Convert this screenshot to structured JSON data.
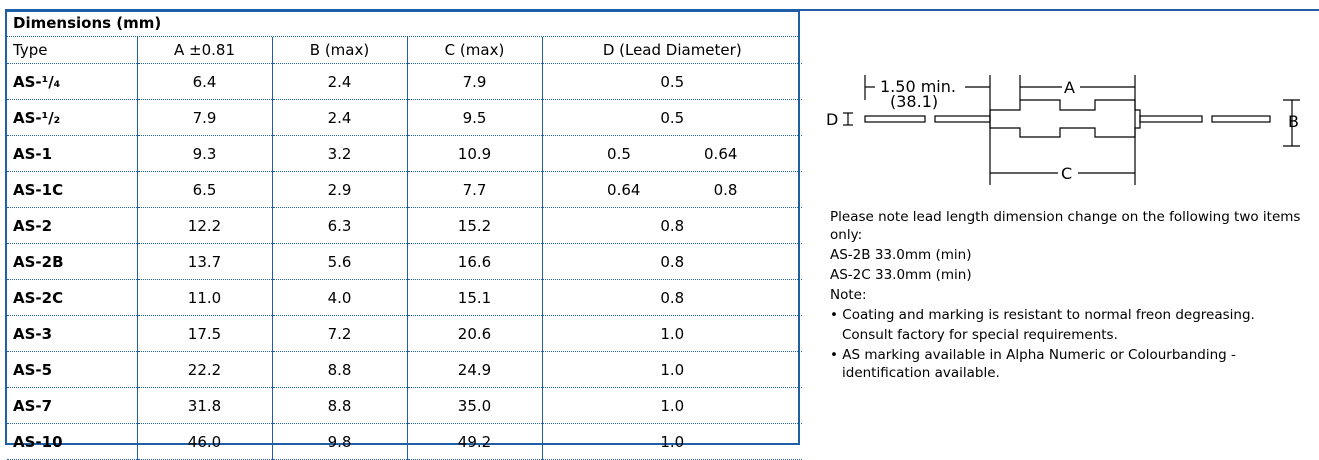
{
  "table": {
    "title": "Dimensions (mm)",
    "headers": [
      "Type",
      "A ±0.81",
      "B (max)",
      "C (max)",
      "D (Lead Diameter)"
    ],
    "rows": [
      [
        "AS-¹/₄",
        "6.4",
        "2.4",
        "7.9",
        "0.5"
      ],
      [
        "AS-¹/₂",
        "7.9",
        "2.4",
        "9.5",
        "0.5"
      ],
      [
        "AS-1",
        "9.3",
        "3.2",
        "10.9",
        [
          "0.5",
          "0.64"
        ]
      ],
      [
        "AS-1C",
        "6.5",
        "2.9",
        "7.7",
        [
          "0.64",
          "0.8"
        ]
      ],
      [
        "AS-2",
        "12.2",
        "6.3",
        "15.2",
        "0.8"
      ],
      [
        "AS-2B",
        "13.7",
        "5.6",
        "16.6",
        "0.8"
      ],
      [
        "AS-2C",
        "11.0",
        "4.0",
        "15.1",
        "0.8"
      ],
      [
        "AS-3",
        "17.5",
        "7.2",
        "20.6",
        "1.0"
      ],
      [
        "AS-5",
        "22.2",
        "8.8",
        "24.9",
        "1.0"
      ],
      [
        "AS-7",
        "31.8",
        "8.8",
        "35.0",
        "1.0"
      ],
      [
        "AS-10",
        "46.0",
        "9.8",
        "49.2",
        "1.0"
      ]
    ]
  },
  "diagram": {
    "lead_length": "1.50 min.",
    "lead_length_inch": "(38.1)",
    "a": "A",
    "b": "B",
    "c": "C",
    "d": "D"
  },
  "notes": {
    "intro": "Please note lead length dimension change on the following two items only:",
    "items": [
      "AS-2B  33.0mm (min)",
      "AS-2C  33.0mm (min)"
    ],
    "heading": "Note:",
    "bullets": [
      {
        "text": "Coating and marking is resistant to normal freon degreasing.",
        "extra": "Consult factory for special requirements."
      },
      {
        "text": "AS marking available in Alpha Numeric or Colourbanding - identification available."
      }
    ]
  }
}
